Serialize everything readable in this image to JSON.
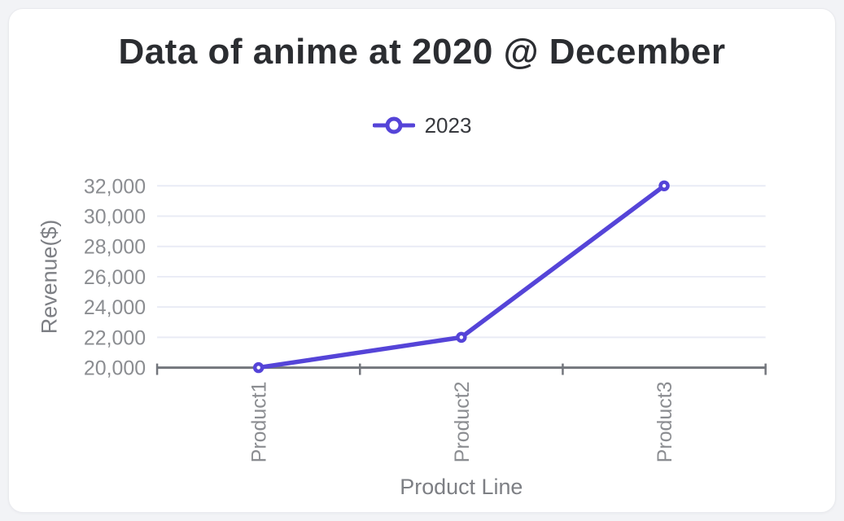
{
  "title": "Data of anime at 2020 @ December",
  "legend": {
    "label": "2023",
    "position": "top-center",
    "marker": "hollow-circle-on-line"
  },
  "chart_data": {
    "type": "line",
    "title": "Data of anime at 2020 @ December",
    "categories": [
      "Product1",
      "Product2",
      "Product3"
    ],
    "series": [
      {
        "name": "2023",
        "values": [
          20000,
          22000,
          32000
        ],
        "color": "#5544d8",
        "marker": "hollow-circle"
      }
    ],
    "xlabel": "Product Line",
    "ylabel": "Revenue($)",
    "ylim": [
      20000,
      32000
    ],
    "ytick_step": 2000,
    "y_tick_labels": [
      "20,000",
      "22,000",
      "24,000",
      "26,000",
      "28,000",
      "30,000",
      "32,000"
    ],
    "grid": "horizontal",
    "legend_position": "top-center",
    "x_label_rotation": -90,
    "colors": {
      "line": "#5544d8",
      "grid": "#e9ebf5",
      "axis": "#73767c",
      "tick_text": "#8b8d91",
      "axis_title_text": "#7d7f84",
      "title_text": "#2b2d31",
      "legend_text": "#37393e",
      "card_background": "#ffffff",
      "page_background": "#f2f3f6"
    }
  }
}
